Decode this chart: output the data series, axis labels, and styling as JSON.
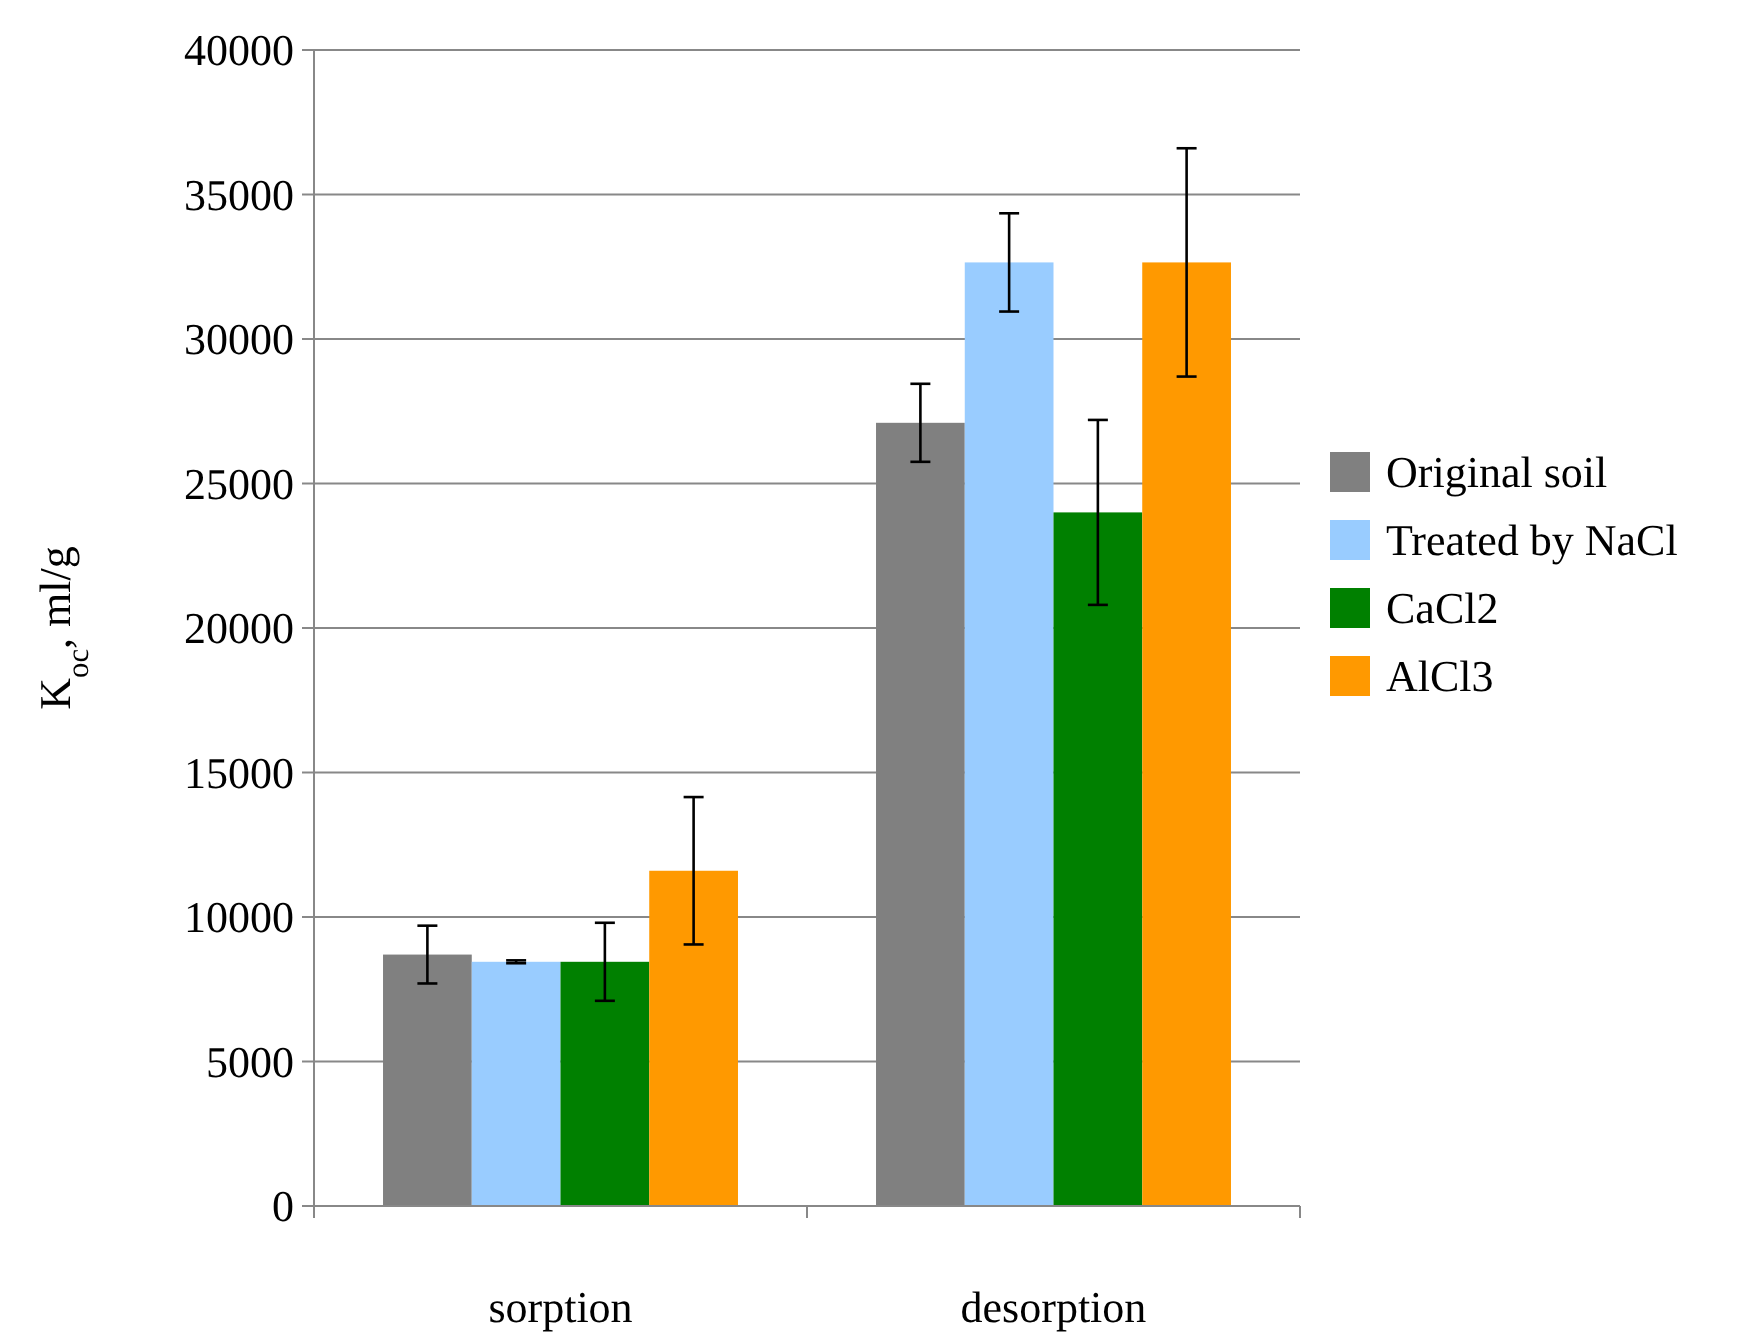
{
  "chart_data": {
    "type": "bar",
    "ylabel": "K$_{oc}$, ml/g",
    "categories": [
      "sorption",
      "desorption"
    ],
    "series": [
      {
        "name": "Original soil",
        "color": "#808080",
        "values": [
          8700,
          27100
        ],
        "errors": [
          1000,
          1350
        ]
      },
      {
        "name": "Treated by NaCl",
        "color": "#99ccff",
        "values": [
          8450,
          32650
        ],
        "errors": [
          50,
          1700
        ]
      },
      {
        "name": "CaCl2",
        "color": "#008000",
        "values": [
          8450,
          24000
        ],
        "errors": [
          1350,
          3200
        ]
      },
      {
        "name": "AlCl3",
        "color": "#ff9900",
        "values": [
          11600,
          32650
        ],
        "errors": [
          2550,
          3950
        ]
      }
    ],
    "ylim": [
      0,
      40000
    ],
    "yticks": [
      0,
      5000,
      10000,
      15000,
      20000,
      25000,
      30000,
      35000,
      40000
    ],
    "grid": "y",
    "legend": "right"
  }
}
